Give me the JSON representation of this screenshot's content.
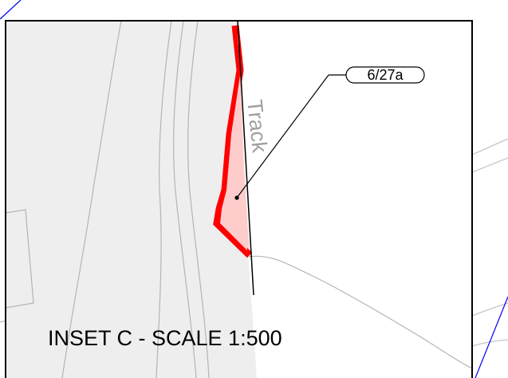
{
  "inset": {
    "title": "INSET C - SCALE 1:500"
  },
  "features": {
    "road_label": "Track"
  },
  "plot": {
    "reference": "6/27a"
  },
  "colors": {
    "plot_outline": "#ff0000",
    "plot_fill": "#ffcccc",
    "highway_fill": "#eeeeee",
    "linework": "#b4b4b4",
    "frame": "#000000",
    "grid_line": "#0000ff"
  }
}
